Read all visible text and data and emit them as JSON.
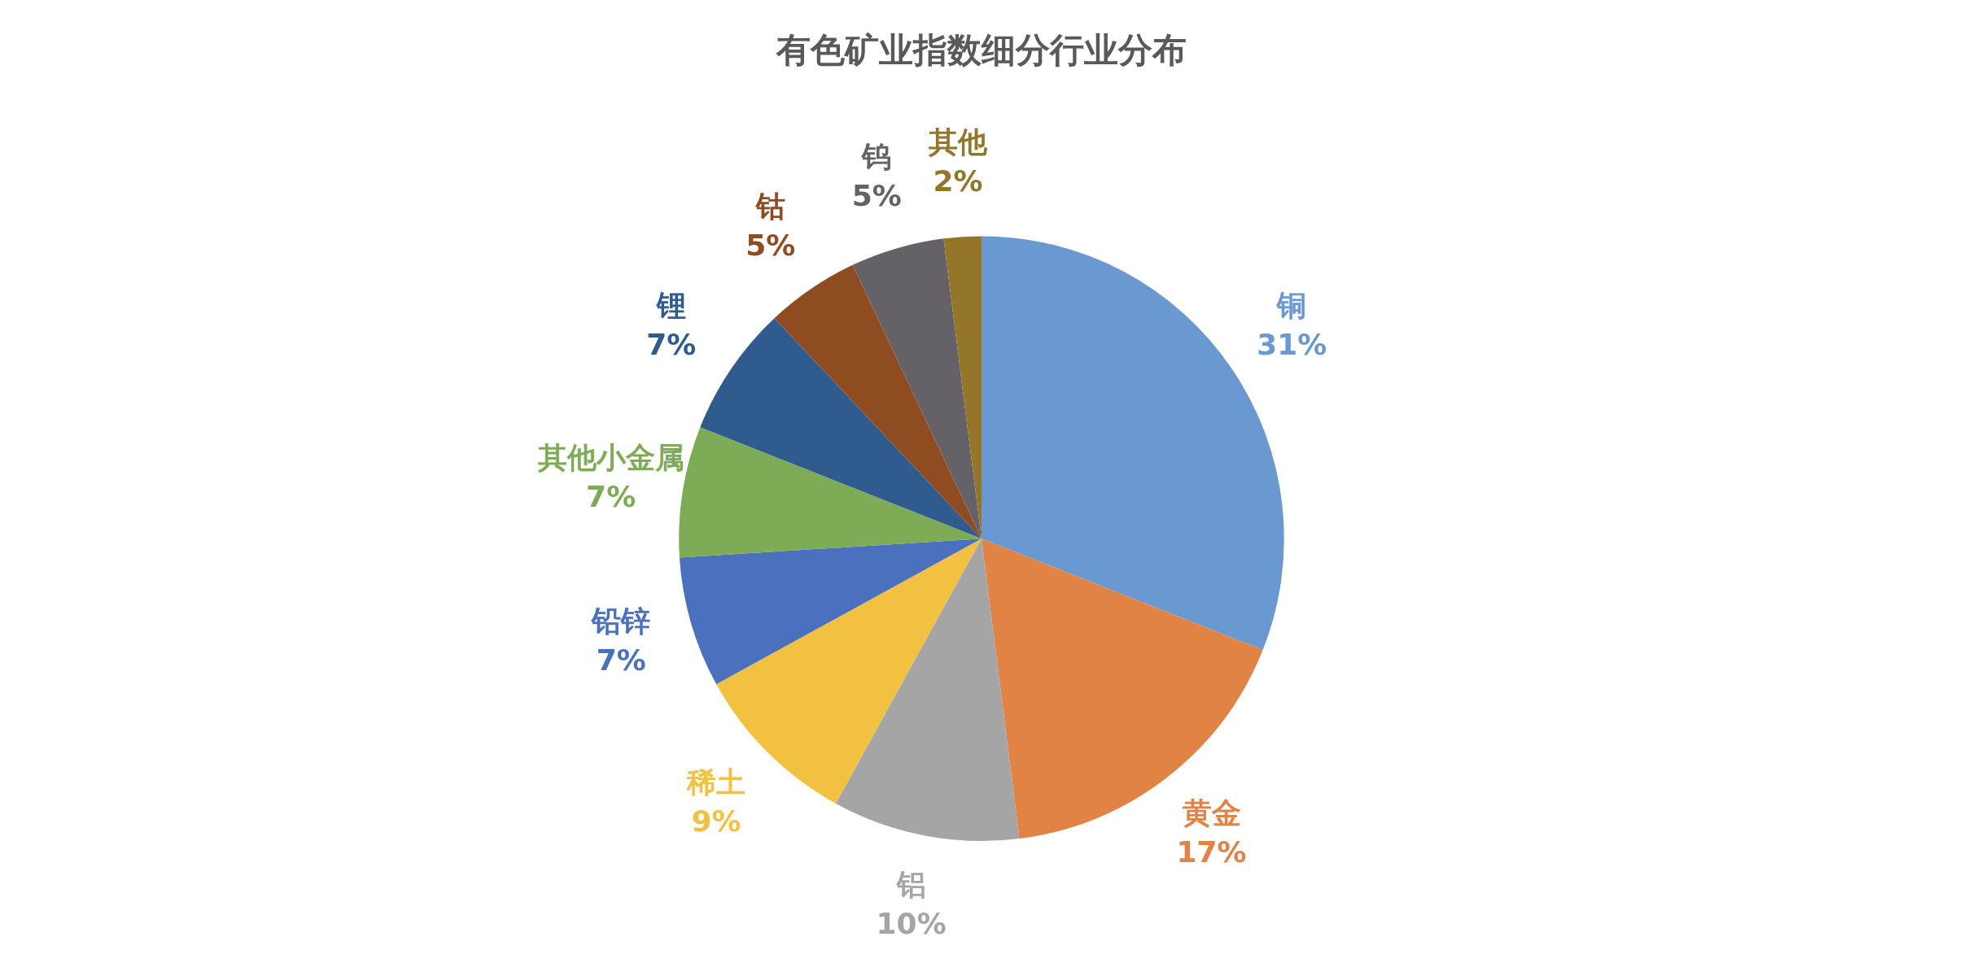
{
  "chart_data": {
    "type": "pie",
    "title": "有色矿业指数细分行业分布",
    "categories": [
      "铜",
      "黄金",
      "铝",
      "稀土",
      "铅锌",
      "其他小金属",
      "锂",
      "钴",
      "钨",
      "其他"
    ],
    "values": [
      31,
      17,
      10,
      9,
      7,
      7,
      7,
      5,
      5,
      2
    ],
    "value_labels": [
      "31%",
      "17%",
      "10%",
      "9%",
      "7%",
      "7%",
      "7%",
      "5%",
      "5%",
      "2%"
    ],
    "colors": [
      "#6a98d0",
      "#e08344",
      "#a5a5a5",
      "#f2c142",
      "#4a70be",
      "#7eab55",
      "#2f5b8e",
      "#8e4c20",
      "#646266",
      "#94762a"
    ],
    "legend": false
  }
}
